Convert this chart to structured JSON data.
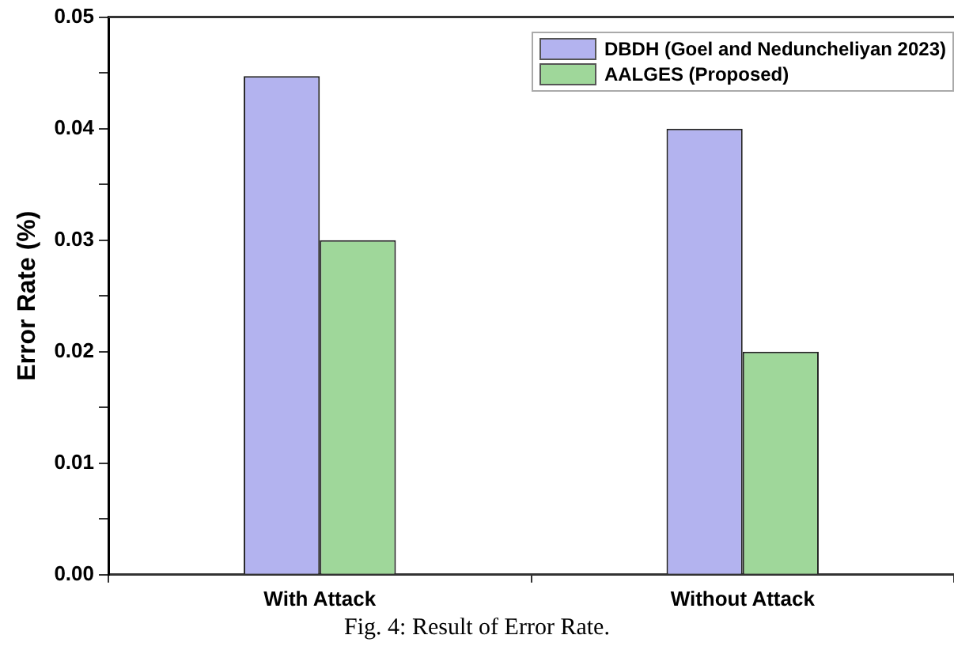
{
  "chart_data": {
    "type": "bar",
    "ylabel": "Error Rate (%)",
    "categories": [
      "With Attack",
      "Without Attack"
    ],
    "series": [
      {
        "name": "DBDH (Goel and Neduncheliyan 2023)",
        "color": "#b3b3ef",
        "values": [
          0.0447,
          0.04
        ]
      },
      {
        "name": "AALGES (Proposed)",
        "color": "#9fd79a",
        "values": [
          0.03,
          0.02
        ]
      }
    ],
    "ylim": [
      0,
      0.05
    ],
    "yticks": [
      {
        "value": 0,
        "label": "0.00"
      },
      {
        "value": 0.005,
        "label": null
      },
      0.01,
      {
        "value": 0.015,
        "label": null
      },
      0.02,
      {
        "value": 0.025,
        "label": null
      },
      0.03,
      {
        "value": 0.035,
        "label": null
      },
      0.04,
      {
        "value": 0.045,
        "label": null
      },
      0.05
    ],
    "grid": false,
    "legend": "top right",
    "annotations": [
      "Fig. 4: Result of Error Rate."
    ]
  }
}
